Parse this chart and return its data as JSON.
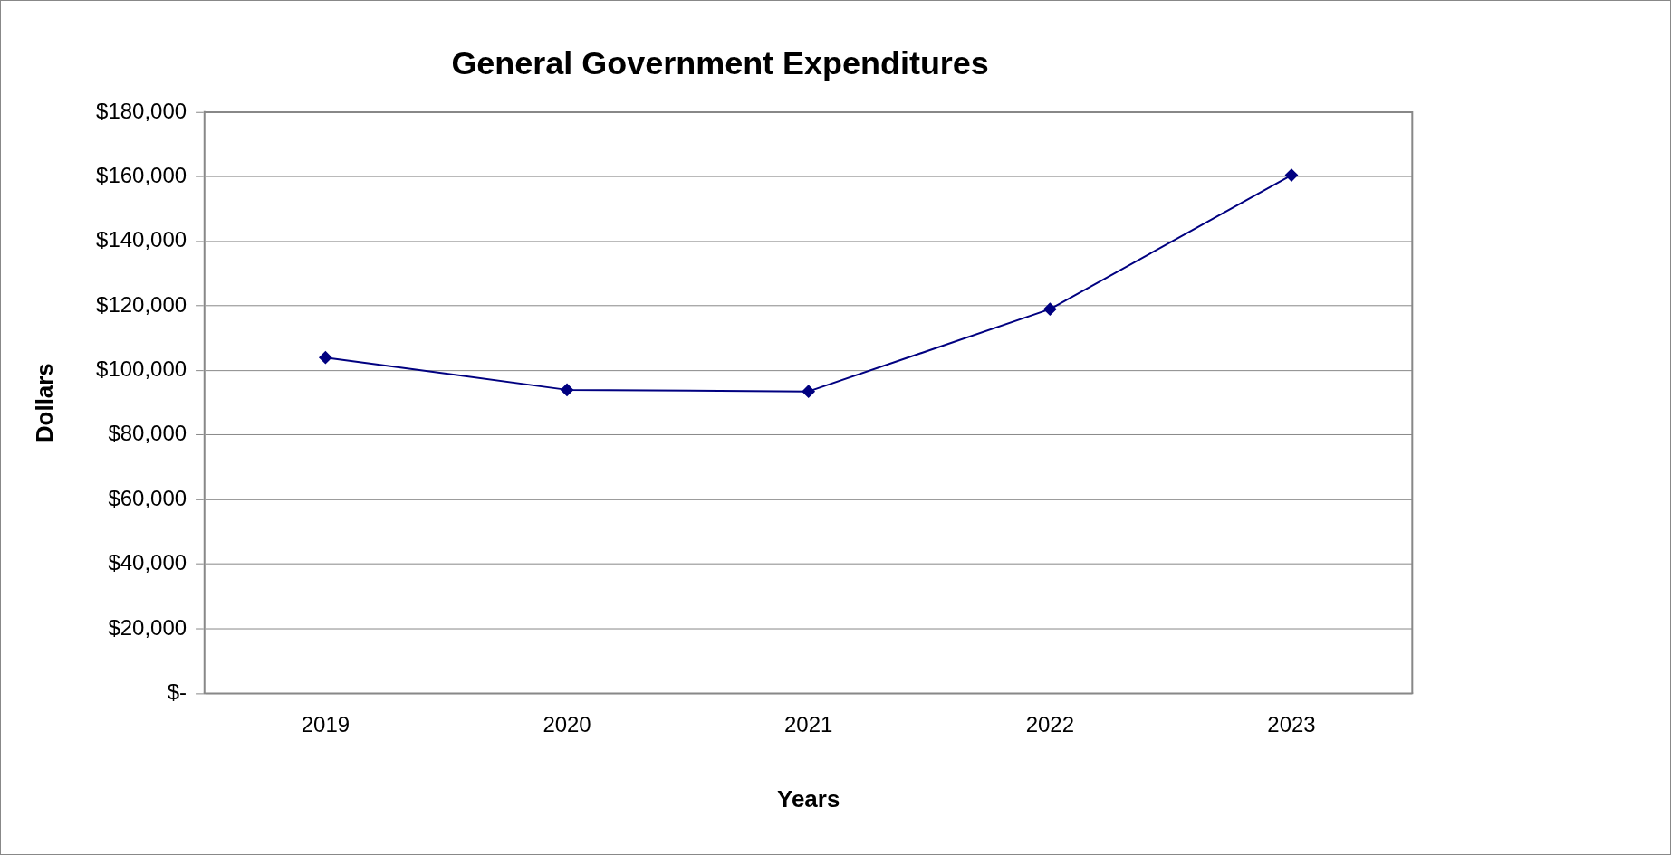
{
  "chart_data": {
    "type": "line",
    "title": "General Government Expenditures",
    "xlabel": "Years",
    "ylabel": "Dollars",
    "categories": [
      "2019",
      "2020",
      "2021",
      "2022",
      "2023"
    ],
    "series": [
      {
        "color": "#000080",
        "values": [
          104000,
          94000,
          93500,
          119000,
          160500
        ]
      }
    ],
    "ylim": [
      0,
      180000
    ],
    "yticks": [
      {
        "value": 0,
        "label": "$-"
      },
      {
        "value": 20000,
        "label": "$20,000"
      },
      {
        "value": 40000,
        "label": "$40,000"
      },
      {
        "value": 60000,
        "label": "$60,000"
      },
      {
        "value": 80000,
        "label": "$80,000"
      },
      {
        "value": 100000,
        "label": "$100,000"
      },
      {
        "value": 120000,
        "label": "$120,000"
      },
      {
        "value": 140000,
        "label": "$140,000"
      },
      {
        "value": 160000,
        "label": "$160,000"
      },
      {
        "value": 180000,
        "label": "$180,000"
      }
    ],
    "grid": "y",
    "legend": false,
    "marker": "diamond",
    "line_style": "solid"
  }
}
